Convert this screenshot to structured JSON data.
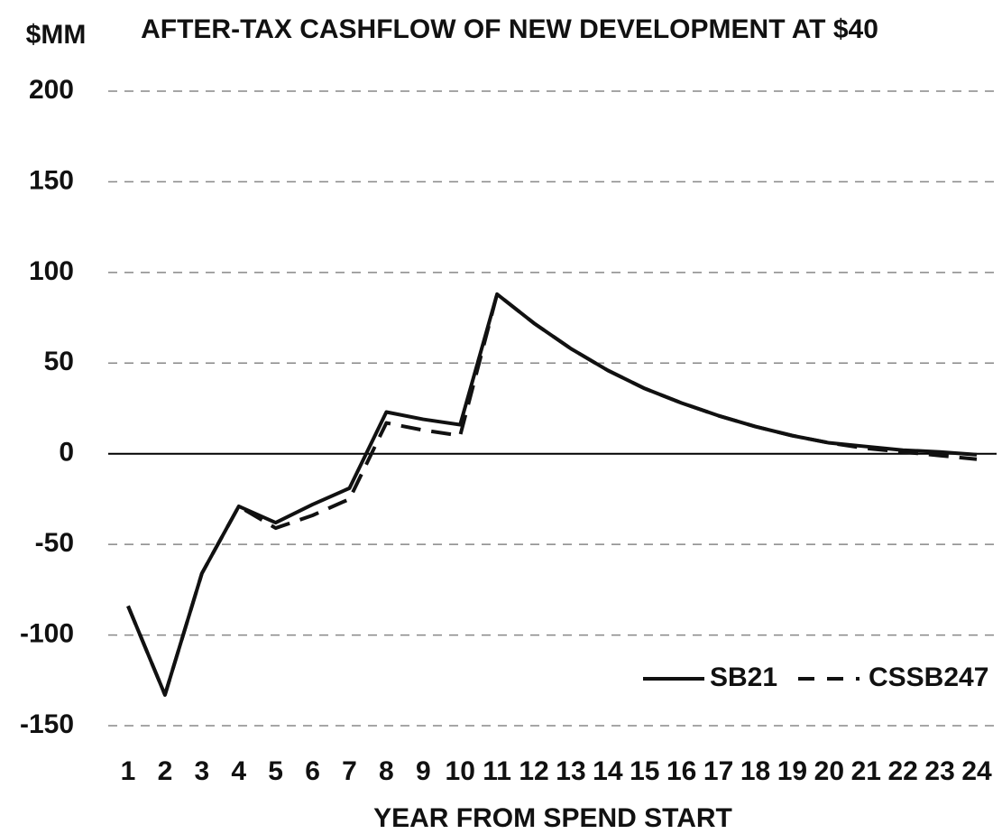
{
  "chart_data": {
    "type": "line",
    "title": "AFTER-TAX CASHFLOW OF NEW DEVELOPMENT AT $40",
    "y_label": "$MM",
    "x_label": "YEAR FROM SPEND START",
    "categories": [
      "1",
      "2",
      "3",
      "4",
      "5",
      "6",
      "7",
      "8",
      "9",
      "10",
      "11",
      "12",
      "13",
      "14",
      "15",
      "16",
      "17",
      "18",
      "19",
      "20",
      "21",
      "22",
      "23",
      "24"
    ],
    "series": [
      {
        "name": "SB21",
        "color": "#111111",
        "dash": "solid",
        "values": [
          -84,
          -133,
          -66,
          -29,
          -38,
          -28,
          -19,
          23,
          19,
          16,
          88,
          72,
          58,
          46,
          36,
          28,
          21,
          15,
          10,
          6,
          4,
          2,
          1,
          -0.5
        ]
      },
      {
        "name": "CSSB247",
        "color": "#111111",
        "dash": "dashed",
        "values": [
          -84,
          -133,
          -66,
          -29,
          -41,
          -34,
          -25,
          17,
          13,
          10,
          88,
          72,
          58,
          46,
          36,
          28,
          21,
          15,
          10,
          6,
          3,
          1,
          -1,
          -3
        ]
      }
    ],
    "ylim": [
      -150,
      200
    ],
    "yticks": [
      -150,
      -100,
      -50,
      0,
      50,
      100,
      150,
      200
    ],
    "grid": true,
    "legend": "lower right"
  }
}
